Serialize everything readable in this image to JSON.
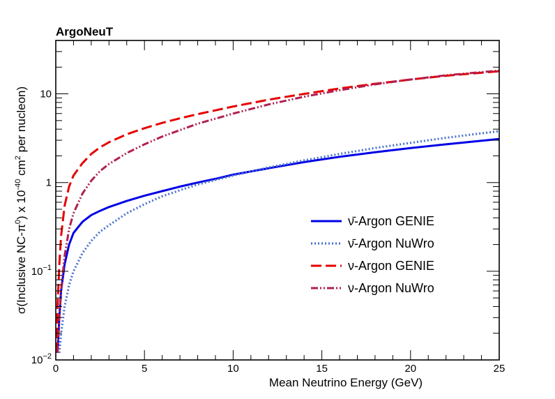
{
  "chart_data": {
    "type": "line",
    "title": "ArgoNeuT",
    "xlabel": "Mean Neutrino Energy (GeV)",
    "ylabel": {
      "prefix": "σ(Inclusive NC-π",
      "pi_sup": "0",
      "middle": ") x 10",
      "exp_sup": "-40",
      "unit": " cm",
      "cm_sup": "2",
      "suffix": " per nucleon)"
    },
    "xlim": [
      0,
      25
    ],
    "ylim": [
      0.01,
      40
    ],
    "yscale": "log",
    "x_ticks": [
      0,
      5,
      10,
      15,
      20,
      25
    ],
    "x_tick_labels": [
      "0",
      "5",
      "10",
      "15",
      "20",
      "25"
    ],
    "y_tick_labels": [
      {
        "value": 0.01,
        "base": "10",
        "exp": "−2"
      },
      {
        "value": 0.1,
        "base": "10",
        "exp": "−1"
      },
      {
        "value": 1,
        "base": "1",
        "exp": ""
      },
      {
        "value": 10,
        "base": "10",
        "exp": ""
      }
    ],
    "series": [
      {
        "name": "ν̄-Argon GENIE",
        "color": "#0000e6",
        "style": "solid",
        "x": [
          0.1,
          0.2,
          0.3,
          0.5,
          0.75,
          1.0,
          1.5,
          2.0,
          2.5,
          3.0,
          4.0,
          5.0,
          6.0,
          7.0,
          8.0,
          9.0,
          10.0,
          12.0,
          14.0,
          16.0,
          18.0,
          20.0,
          22.0,
          25.0
        ],
        "y": [
          0.012,
          0.03,
          0.06,
          0.12,
          0.2,
          0.27,
          0.36,
          0.43,
          0.48,
          0.53,
          0.62,
          0.71,
          0.8,
          0.9,
          1.0,
          1.1,
          1.23,
          1.45,
          1.7,
          1.95,
          2.2,
          2.45,
          2.7,
          3.1
        ]
      },
      {
        "name": "ν̄-Argon NuWro",
        "color": "#4a72d0",
        "style": "dotted",
        "x": [
          0.2,
          0.3,
          0.5,
          0.75,
          1.0,
          1.5,
          2.0,
          2.5,
          3.0,
          4.0,
          5.0,
          6.0,
          7.0,
          8.0,
          9.0,
          10.0,
          12.0,
          14.0,
          16.0,
          18.0,
          20.0,
          22.0,
          25.0
        ],
        "y": [
          0.012,
          0.02,
          0.04,
          0.07,
          0.1,
          0.16,
          0.22,
          0.28,
          0.33,
          0.45,
          0.57,
          0.7,
          0.82,
          0.95,
          1.07,
          1.2,
          1.48,
          1.78,
          2.1,
          2.45,
          2.8,
          3.2,
          3.8
        ]
      },
      {
        "name": "ν-Argon GENIE",
        "color": "#e60000",
        "style": "dashed",
        "x": [
          0.05,
          0.1,
          0.2,
          0.3,
          0.5,
          0.75,
          1.0,
          1.5,
          2.0,
          2.5,
          3.0,
          4.0,
          5.0,
          6.0,
          7.0,
          8.0,
          10.0,
          12.0,
          14.0,
          16.0,
          18.0,
          20.0,
          22.0,
          25.0
        ],
        "y": [
          0.012,
          0.04,
          0.12,
          0.25,
          0.55,
          0.9,
          1.2,
          1.65,
          2.1,
          2.5,
          2.85,
          3.5,
          4.1,
          4.7,
          5.3,
          5.9,
          7.2,
          8.6,
          10.0,
          11.5,
          13.0,
          14.5,
          16.0,
          18.0
        ]
      },
      {
        "name": "ν-Argon NuWro",
        "color": "#b02050",
        "style": "dashdotdot",
        "x": [
          0.1,
          0.2,
          0.3,
          0.5,
          0.75,
          1.0,
          1.5,
          2.0,
          2.5,
          3.0,
          4.0,
          5.0,
          6.0,
          7.0,
          8.0,
          10.0,
          12.0,
          14.0,
          16.0,
          18.0,
          20.0,
          22.0,
          25.0
        ],
        "y": [
          0.012,
          0.03,
          0.06,
          0.15,
          0.3,
          0.45,
          0.75,
          1.05,
          1.35,
          1.62,
          2.15,
          2.7,
          3.3,
          3.9,
          4.6,
          6.0,
          7.6,
          9.3,
          11.0,
          12.8,
          14.5,
          16.2,
          18.3
        ]
      }
    ],
    "legend_position": "center-right"
  }
}
